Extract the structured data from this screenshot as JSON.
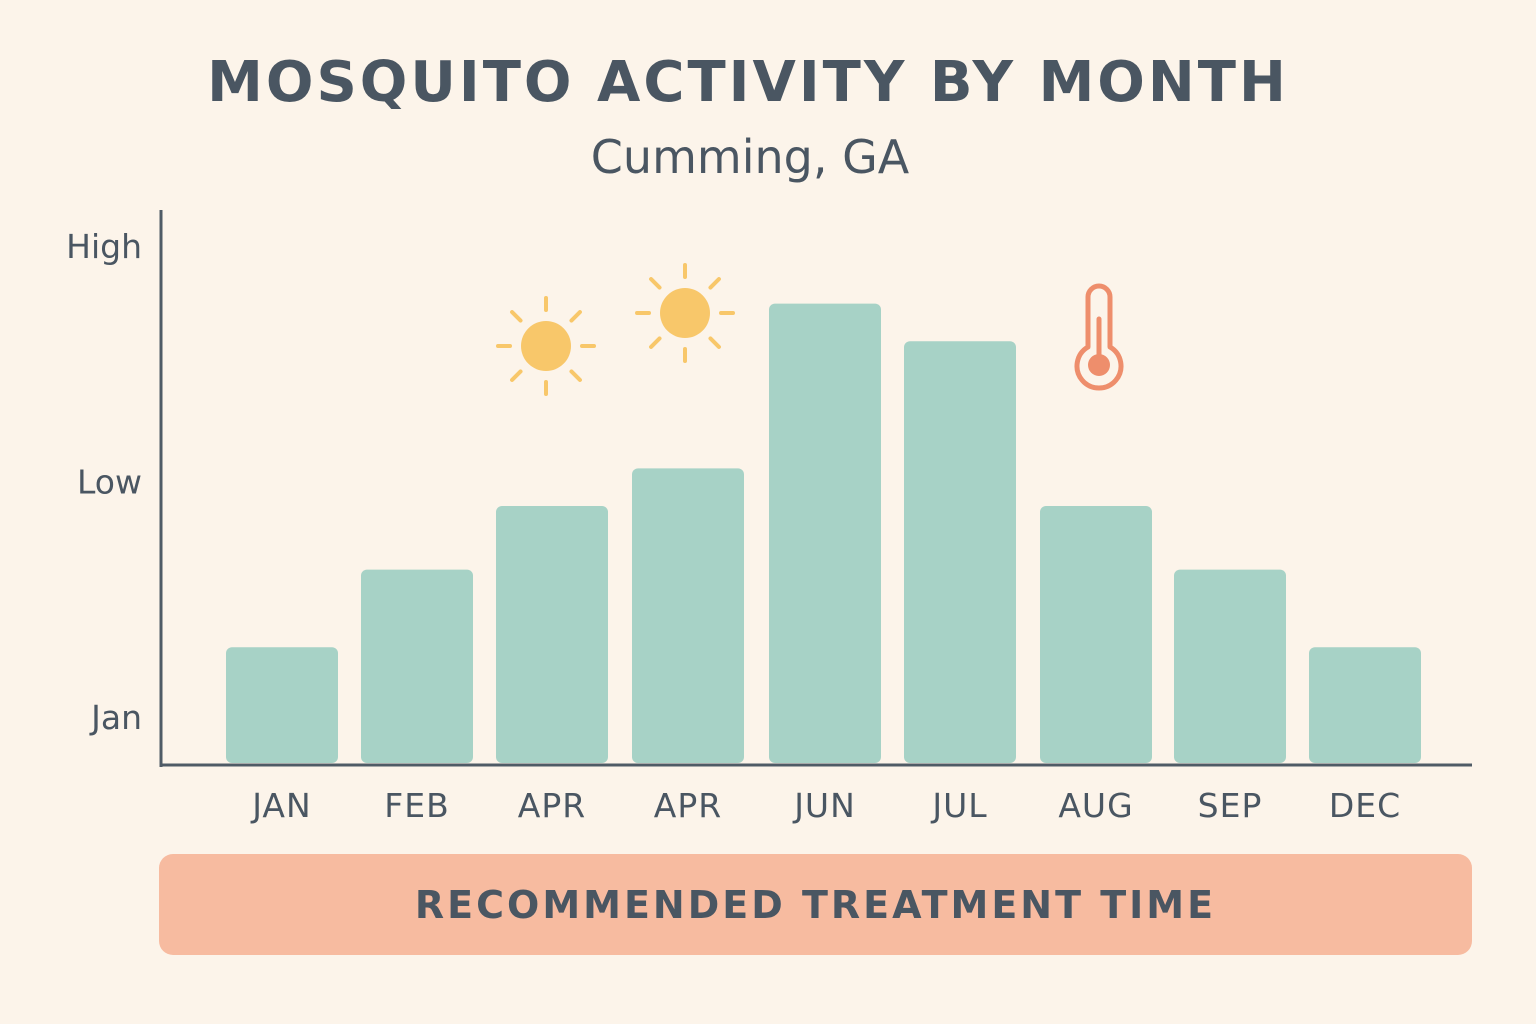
{
  "chart_data": {
    "type": "bar",
    "title": "MOSQUITO ACTIVITY BY MONTH",
    "subtitle": "Cumming, GA",
    "categories": [
      "JAN",
      "FEB",
      "APR",
      "APR",
      "JUN",
      "JUL",
      "AUG",
      "SEP",
      "DEC"
    ],
    "values": [
      0.3,
      0.63,
      0.9,
      1.06,
      1.76,
      1.6,
      0.9,
      0.63,
      0.3
    ],
    "y_tick_labels": [
      "Jan",
      "Low",
      "High"
    ],
    "y_tick_values": [
      0,
      1,
      2
    ],
    "ylim": [
      -0.2,
      2.2
    ],
    "xlabel": "",
    "ylabel": "",
    "grid": false,
    "legend": "none",
    "bar_color": "#A7D2C6",
    "annotations": [
      {
        "category_index": 2,
        "icon": "sun-icon",
        "color": "#F8C76A"
      },
      {
        "category_index": 3,
        "icon": "sun-icon",
        "color": "#F8C76A"
      },
      {
        "category_index": 6,
        "icon": "thermometer-icon",
        "color": "#EE8E6C"
      }
    ]
  },
  "treatment_banner": {
    "label": "RECOMMENDED TREATMENT TIME",
    "color": "#F7BBA0"
  }
}
